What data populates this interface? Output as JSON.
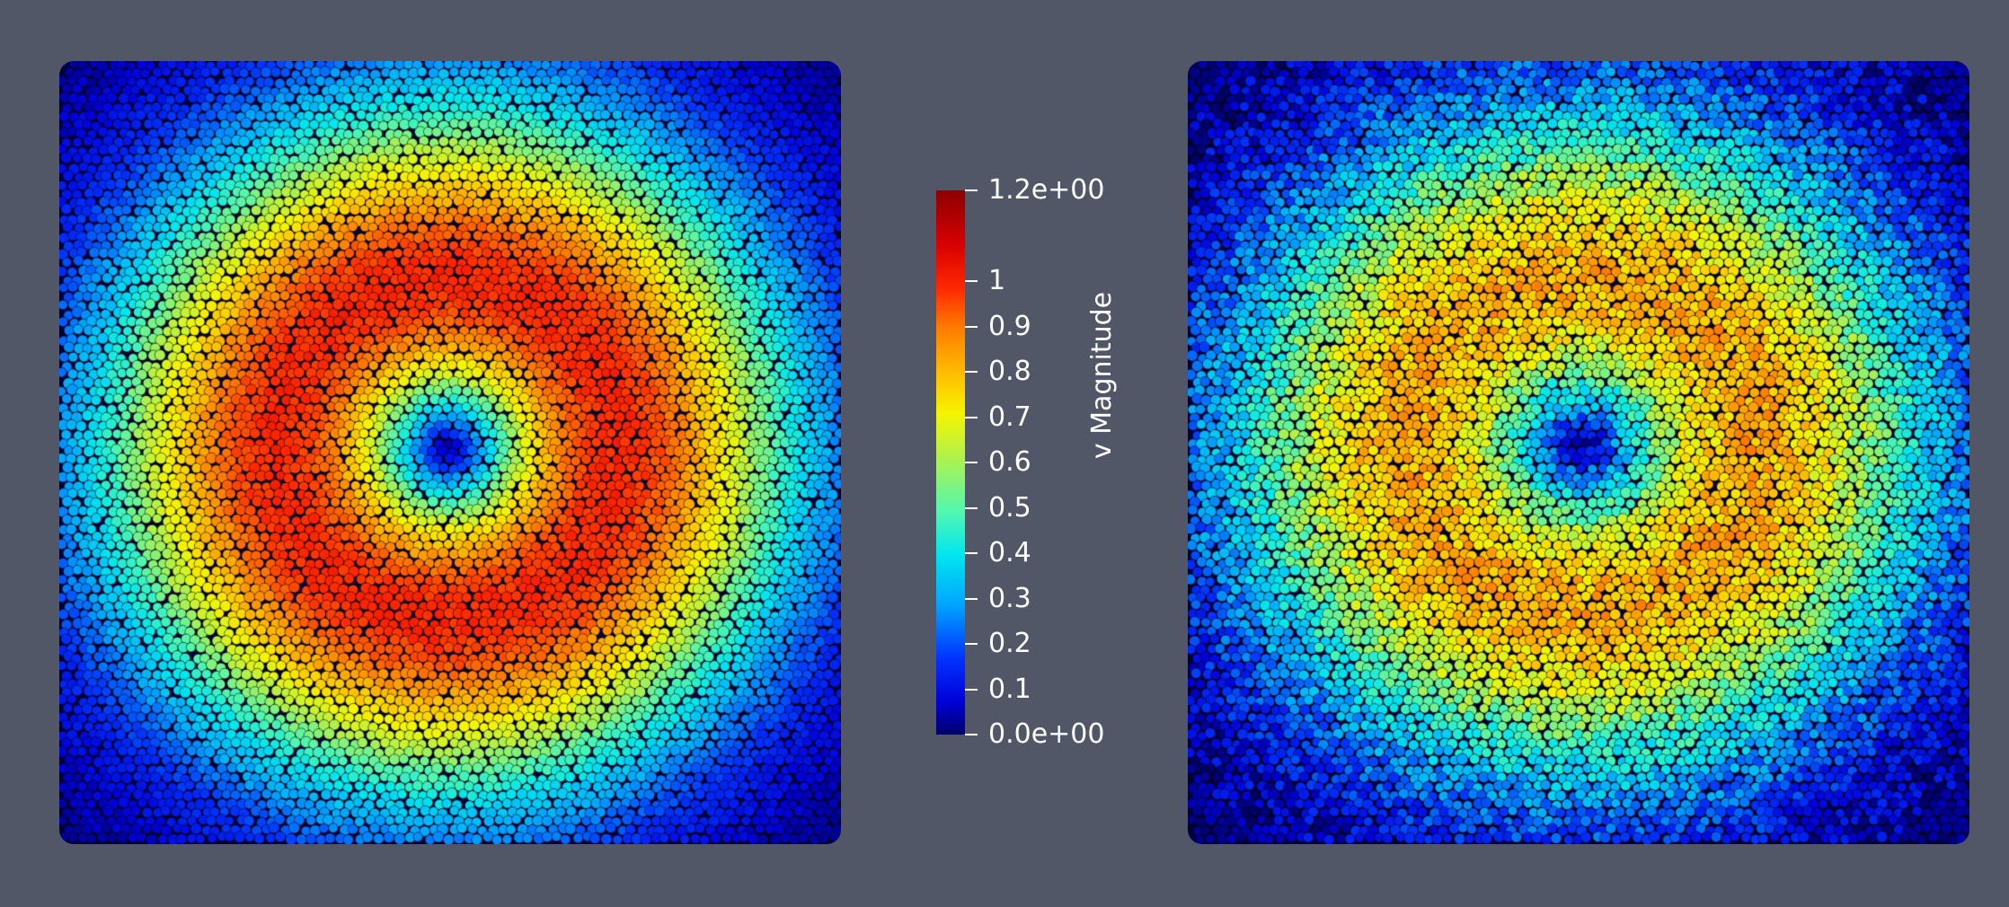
{
  "scene": {
    "background": "#525768",
    "views": [
      {
        "name": "left-view",
        "field": "v Magnitude",
        "description_pattern": "smooth ring"
      },
      {
        "name": "right-view",
        "field": "v Magnitude",
        "description_pattern": "noisy ring"
      }
    ]
  },
  "colorbar": {
    "title": "v Magnitude",
    "range": [
      0.0,
      1.2
    ],
    "ticks": [
      {
        "value": 1.2,
        "label": "1.2e+00"
      },
      {
        "value": 1.0,
        "label": "1"
      },
      {
        "value": 0.9,
        "label": "0.9"
      },
      {
        "value": 0.8,
        "label": "0.8"
      },
      {
        "value": 0.7,
        "label": "0.7"
      },
      {
        "value": 0.6,
        "label": "0.6"
      },
      {
        "value": 0.5,
        "label": "0.5"
      },
      {
        "value": 0.4,
        "label": "0.4"
      },
      {
        "value": 0.3,
        "label": "0.3"
      },
      {
        "value": 0.2,
        "label": "0.2"
      },
      {
        "value": 0.1,
        "label": "0.1"
      },
      {
        "value": 0.0,
        "label": "0.0e+00"
      }
    ],
    "colormap": "jet"
  }
}
